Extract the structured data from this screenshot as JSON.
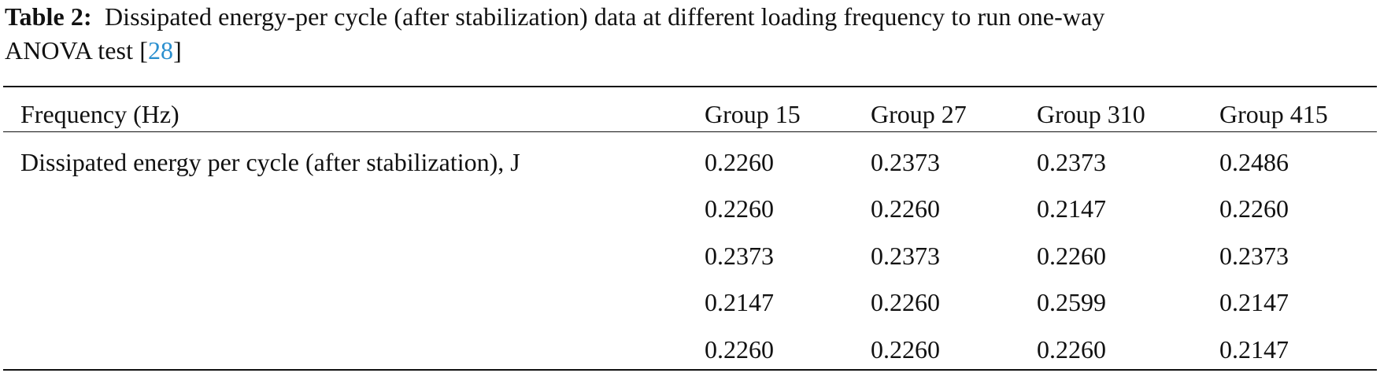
{
  "caption": {
    "label": "Table 2:",
    "text_line1": "Dissipated energy-per cycle (after stabilization) data at different loading frequency to run one-way",
    "text_line2": "ANOVA test [",
    "ref": "28",
    "text_end": "]"
  },
  "table": {
    "headers": [
      "Frequency (Hz)",
      "Group 15",
      "Group 27",
      "Group 310",
      "Group 415"
    ],
    "row_label": "Dissipated energy per cycle (after stabilization), J",
    "rows": [
      [
        "0.2260",
        "0.2373",
        "0.2373",
        "0.2486"
      ],
      [
        "0.2260",
        "0.2260",
        "0.2147",
        "0.2260"
      ],
      [
        "0.2373",
        "0.2373",
        "0.2260",
        "0.2373"
      ],
      [
        "0.2147",
        "0.2260",
        "0.2599",
        "0.2147"
      ],
      [
        "0.2260",
        "0.2260",
        "0.2260",
        "0.2147"
      ]
    ]
  }
}
